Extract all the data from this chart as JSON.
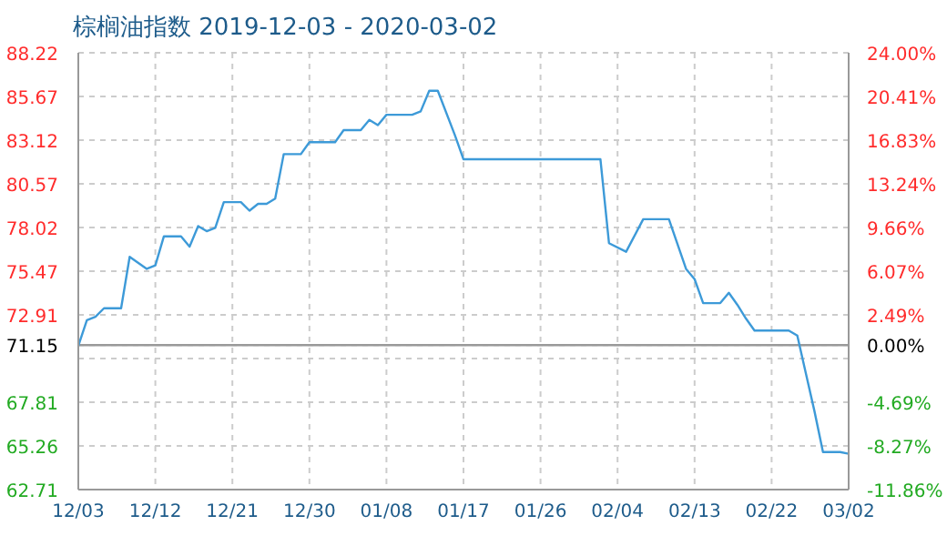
{
  "chart_data": {
    "type": "line",
    "title": "棕榈油指数 2019-12-03 - 2020-03-02",
    "x": [
      "2019-12-03",
      "2019-12-04",
      "2019-12-05",
      "2019-12-06",
      "2019-12-08",
      "2019-12-09",
      "2019-12-11",
      "2019-12-12",
      "2019-12-13",
      "2019-12-15",
      "2019-12-16",
      "2019-12-17",
      "2019-12-18",
      "2019-12-19",
      "2019-12-20",
      "2019-12-22",
      "2019-12-23",
      "2019-12-24",
      "2019-12-25",
      "2019-12-26",
      "2019-12-27",
      "2019-12-29",
      "2019-12-30",
      "2020-01-02",
      "2020-01-03",
      "2020-01-05",
      "2020-01-06",
      "2020-01-07",
      "2020-01-08",
      "2020-01-11",
      "2020-01-12",
      "2020-01-13",
      "2020-01-14",
      "2020-01-16",
      "2020-01-17",
      "2020-02-02",
      "2020-02-03",
      "2020-02-05",
      "2020-02-07",
      "2020-02-10",
      "2020-02-12",
      "2020-02-13",
      "2020-02-14",
      "2020-02-16",
      "2020-02-17",
      "2020-02-18",
      "2020-02-19",
      "2020-02-20",
      "2020-02-24",
      "2020-02-25",
      "2020-02-26",
      "2020-02-27",
      "2020-02-28",
      "2020-03-01",
      "2020-03-02"
    ],
    "series": [
      {
        "color": "#3d9ad8",
        "values": [
          71.1,
          72.6,
          72.8,
          73.3,
          73.3,
          76.3,
          75.6,
          75.8,
          77.5,
          77.5,
          76.9,
          78.1,
          77.8,
          78.0,
          79.5,
          79.5,
          79.0,
          79.4,
          79.4,
          79.7,
          82.3,
          82.3,
          83.0,
          83.0,
          83.7,
          83.7,
          84.3,
          84.0,
          84.6,
          84.6,
          84.8,
          86.0,
          86.0,
          83.4,
          82.0,
          82.0,
          77.1,
          76.6,
          78.5,
          78.5,
          75.6,
          75.0,
          73.6,
          73.6,
          74.2,
          73.5,
          72.7,
          72.0,
          72.0,
          71.7,
          69.5,
          67.3,
          64.9,
          64.9,
          64.8
        ]
      }
    ],
    "xlim": [
      "2019-12-03",
      "2020-03-02"
    ],
    "xticks": [
      {
        "value": "2019-12-03",
        "label": "12/03"
      },
      {
        "value": "2019-12-12",
        "label": "12/12"
      },
      {
        "value": "2019-12-21",
        "label": "12/21"
      },
      {
        "value": "2019-12-30",
        "label": "12/30"
      },
      {
        "value": "2020-01-08",
        "label": "01/08"
      },
      {
        "value": "2020-01-17",
        "label": "01/17"
      },
      {
        "value": "2020-01-26",
        "label": "01/26"
      },
      {
        "value": "2020-02-04",
        "label": "02/04"
      },
      {
        "value": "2020-02-13",
        "label": "02/13"
      },
      {
        "value": "2020-02-22",
        "label": "02/22"
      },
      {
        "value": "2020-03-02",
        "label": "03/02"
      }
    ],
    "ylim": [
      62.71,
      88.22
    ],
    "yticks": [
      62.71,
      65.26,
      67.81,
      {
        "value": 70.36,
        "label": null
      },
      71.15,
      72.91,
      75.47,
      78.02,
      80.57,
      83.12,
      85.67,
      88.22
    ],
    "y2lim": [
      -11.86,
      24
    ],
    "y2ticks": [
      {
        "value": -11.86,
        "label": "-11.86%"
      },
      {
        "value": -8.27,
        "label": "-8.27%"
      },
      {
        "value": -4.69,
        "label": "-4.69%"
      },
      {
        "value": 0,
        "label": "0.00%"
      },
      {
        "value": 2.49,
        "label": "2.49%"
      },
      {
        "value": 6.07,
        "label": "6.07%"
      },
      {
        "value": 9.66,
        "label": "9.66%"
      },
      {
        "value": 13.24,
        "label": "13.24%"
      },
      {
        "value": 16.83,
        "label": "16.83%"
      },
      {
        "value": 20.41,
        "label": "20.41%"
      },
      {
        "value": 24,
        "label": "24.00%"
      }
    ],
    "ref_lines": [
      {
        "axis": "y",
        "value": 71.15,
        "color": "#999999"
      }
    ],
    "grid": true,
    "marker": "none",
    "line_style": "solid"
  }
}
